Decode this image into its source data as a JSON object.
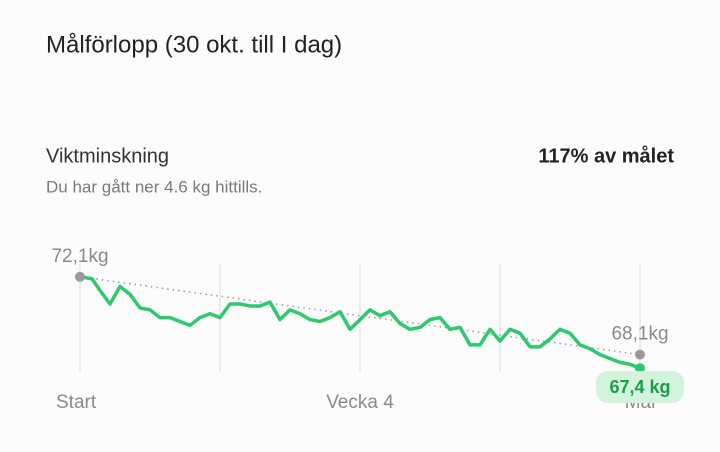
{
  "header": {
    "title": "Målförlopp (30 okt. till I dag)"
  },
  "summary": {
    "label": "Viktminskning",
    "subtitle": "Du har gått ner 4.6 kg hittills.",
    "progress": "117% av målet"
  },
  "chart_data": {
    "type": "line",
    "x": [
      0,
      1.2,
      2,
      3,
      4,
      5,
      6,
      7,
      8,
      9,
      10,
      11,
      12,
      13,
      14,
      15,
      16,
      17,
      18,
      19,
      20,
      21,
      22,
      23,
      24,
      25,
      26,
      27,
      28,
      29,
      30,
      31,
      32,
      33,
      34,
      35,
      36,
      37,
      38,
      39,
      40,
      41,
      42,
      43,
      44,
      45,
      46,
      47,
      48,
      49,
      50,
      51,
      52,
      53,
      54,
      55,
      56
    ],
    "series": [
      {
        "color": "#2dc96c",
        "values": [
          72.1,
          72.0,
          71.4,
          70.7,
          71.6,
          71.2,
          70.5,
          70.4,
          70.0,
          70.0,
          69.8,
          69.6,
          70.0,
          70.2,
          70.0,
          70.7,
          70.7,
          70.6,
          70.6,
          70.8,
          69.9,
          70.4,
          70.2,
          69.9,
          69.8,
          70.0,
          70.3,
          69.4,
          69.9,
          70.4,
          70.1,
          70.3,
          69.7,
          69.4,
          69.5,
          69.9,
          70.0,
          69.4,
          69.5,
          68.6,
          68.6,
          69.4,
          68.8,
          69.4,
          69.2,
          68.5,
          68.5,
          68.9,
          69.4,
          69.2,
          68.6,
          68.4,
          68.1,
          67.9,
          67.7,
          67.6,
          67.4
        ]
      }
    ],
    "xlim": [
      0,
      56
    ],
    "ylim": [
      67,
      72.5
    ],
    "xticks": [
      {
        "value": 0,
        "label": "Start"
      },
      {
        "value": 14,
        "label": null
      },
      {
        "value": 28,
        "label": "Vecka 4"
      },
      {
        "value": 42,
        "label": null
      },
      {
        "value": 56,
        "label": "Mål"
      }
    ],
    "grid": true,
    "trend_color": "#9a9a9a",
    "start": {
      "value": 72.1,
      "label": "72,1kg"
    },
    "goal": {
      "value": 68.1,
      "label": "68,1kg"
    },
    "current": {
      "value": 67.4,
      "label": "67,4 kg"
    }
  }
}
